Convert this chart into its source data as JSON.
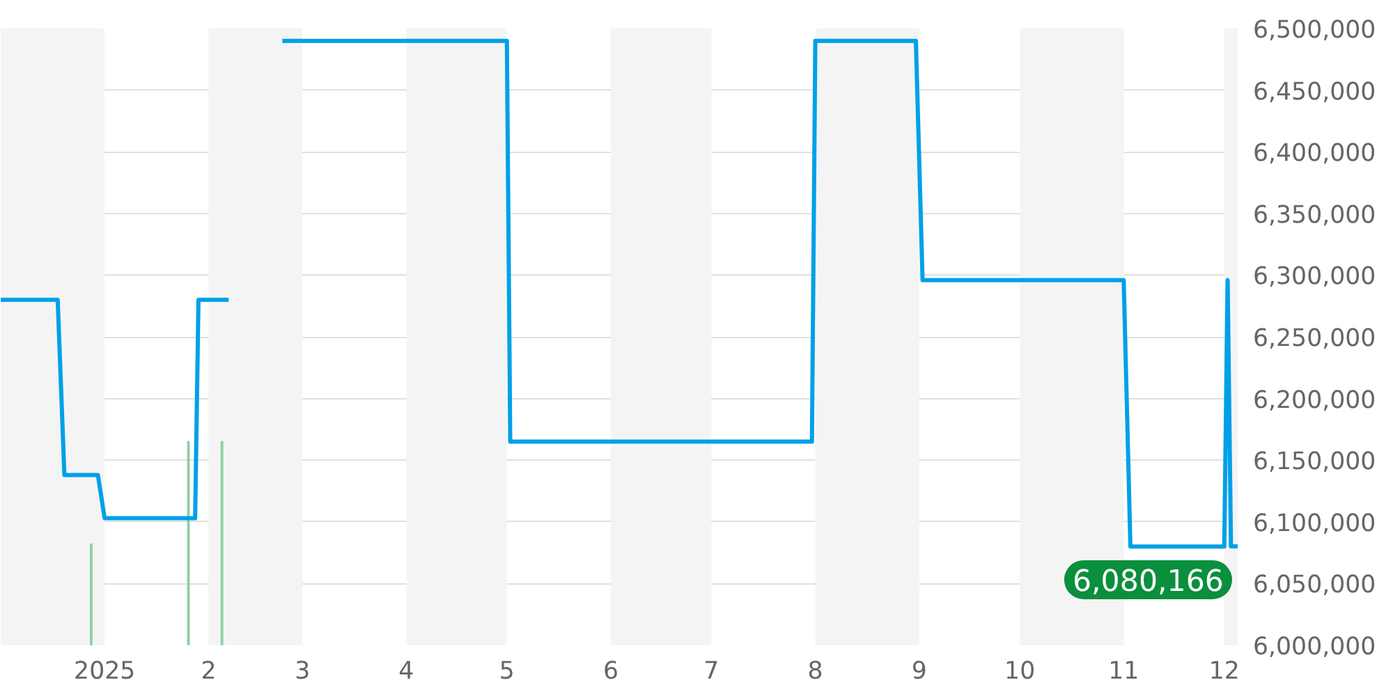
{
  "chart_data": {
    "type": "line",
    "xlim": [
      "2024-12-01",
      "2025-12-05"
    ],
    "xticks": [
      {
        "value": "2025-01-01",
        "label": "2025"
      },
      {
        "value": "2025-02-01",
        "label": "2"
      },
      {
        "value": "2025-03-01",
        "label": "3"
      },
      {
        "value": "2025-04-01",
        "label": "4"
      },
      {
        "value": "2025-05-01",
        "label": "5"
      },
      {
        "value": "2025-06-01",
        "label": "6"
      },
      {
        "value": "2025-07-01",
        "label": "7"
      },
      {
        "value": "2025-08-01",
        "label": "8"
      },
      {
        "value": "2025-09-01",
        "label": "9"
      },
      {
        "value": "2025-10-01",
        "label": "10"
      },
      {
        "value": "2025-11-01",
        "label": "11"
      },
      {
        "value": "2025-12-01",
        "label": "12"
      }
    ],
    "ylim": [
      6000000,
      6500000
    ],
    "yticks": [
      {
        "value": 6000000,
        "label": "6,000,000"
      },
      {
        "value": 6050000,
        "label": "6,050,000"
      },
      {
        "value": 6100000,
        "label": "6,100,000"
      },
      {
        "value": 6150000,
        "label": "6,150,000"
      },
      {
        "value": 6200000,
        "label": "6,200,000"
      },
      {
        "value": 6250000,
        "label": "6,250,000"
      },
      {
        "value": 6300000,
        "label": "6,300,000"
      },
      {
        "value": 6350000,
        "label": "6,350,000"
      },
      {
        "value": 6400000,
        "label": "6,400,000"
      },
      {
        "value": 6450000,
        "label": "6,450,000"
      },
      {
        "value": 6500000,
        "label": "6,500,000"
      }
    ],
    "grid": "y",
    "series": [
      {
        "type": "bar",
        "color": "#8fd19e",
        "x": [
          "2024-12-28",
          "2025-01-26",
          "2025-02-05"
        ],
        "values": [
          6082000,
          6165000,
          6165000
        ]
      },
      {
        "color": "#00a0e9",
        "x": [
          "2024-12-01",
          "2024-12-18",
          "2024-12-20",
          "2024-12-30",
          "2025-01-01",
          "2025-01-28",
          "2025-01-29",
          "2025-02-07",
          "2025-02-15",
          "2025-02-23",
          "2025-05-01",
          "2025-05-02",
          "2025-07-31",
          "2025-08-01",
          "2025-08-31",
          "2025-09-02",
          "2025-11-01",
          "2025-11-03",
          "2025-12-01",
          "2025-12-02",
          "2025-12-03",
          "2025-12-05"
        ],
        "values": [
          6280000,
          6280000,
          6138000,
          6138000,
          6103000,
          6103000,
          6280000,
          6280000,
          null,
          6490000,
          6490000,
          6165000,
          6165000,
          6490000,
          6490000,
          6296000,
          6296000,
          6080000,
          6080000,
          6296000,
          6080166,
          6080166
        ]
      }
    ],
    "bands": [
      {
        "axis": "x",
        "from": "2024-12-01",
        "to": "2025-01-01",
        "color": "#f4f4f4"
      },
      {
        "axis": "x",
        "from": "2025-02-01",
        "to": "2025-03-01",
        "color": "#f4f4f4"
      },
      {
        "axis": "x",
        "from": "2025-04-01",
        "to": "2025-05-01",
        "color": "#f4f4f4"
      },
      {
        "axis": "x",
        "from": "2025-06-01",
        "to": "2025-07-01",
        "color": "#f4f4f4"
      },
      {
        "axis": "x",
        "from": "2025-08-01",
        "to": "2025-09-01",
        "color": "#f4f4f4"
      },
      {
        "axis": "x",
        "from": "2025-10-01",
        "to": "2025-11-01",
        "color": "#f4f4f4"
      },
      {
        "axis": "x",
        "from": "2025-12-01",
        "to": "2025-12-05",
        "color": "#f4f4f4"
      }
    ],
    "annotations": [
      {
        "text": "6,080,166",
        "x": "2025-12-05",
        "y": 6080166
      }
    ]
  }
}
